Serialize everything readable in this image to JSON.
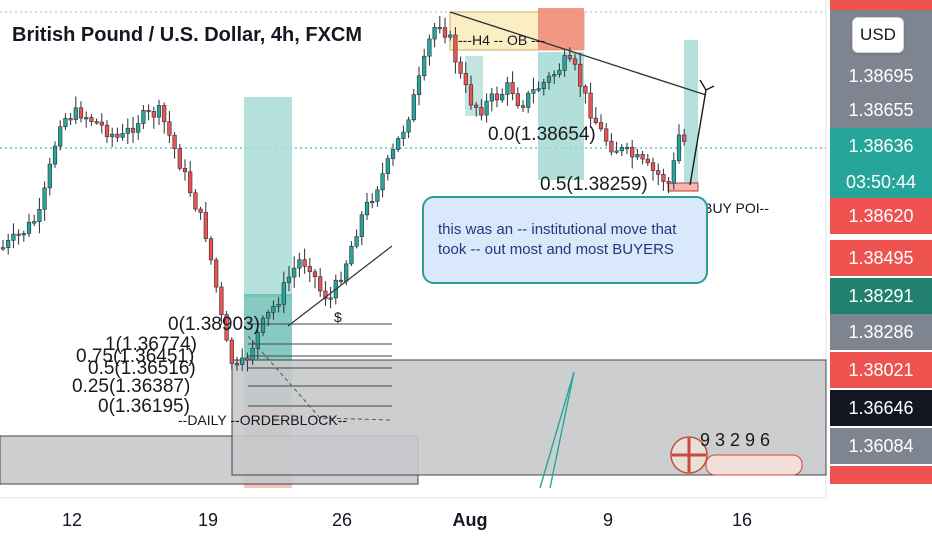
{
  "header": {
    "title": "British Pound / U.S. Dollar, 4h, FXCM",
    "currency_button": "USD"
  },
  "chart_data": {
    "type": "candlestick",
    "title": "British Pound / U.S. Dollar, 4h, FXCM",
    "y_axis": {
      "ticks": [
        "1.38695",
        "1.38655"
      ],
      "price_tags": [
        {
          "label": "1.38636",
          "color": "#26a69a"
        },
        {
          "label": "03:50:44",
          "color": "#26a69a"
        },
        {
          "label": "1.38620",
          "color": "#ef5350"
        },
        {
          "label": "1.38495",
          "color": "#ef5350"
        },
        {
          "label": "1.38291",
          "color": "#22806e"
        },
        {
          "label": "1.38286",
          "color": "#7f8590"
        },
        {
          "label": "1.38021",
          "color": "#ef5350"
        },
        {
          "label": "1.36646",
          "color": "#131722"
        },
        {
          "label": "1.36084",
          "color": "#7f8590"
        }
      ]
    },
    "x_axis": {
      "ticks": [
        "12",
        "19",
        "26",
        "Aug",
        "9",
        "16"
      ]
    },
    "annotations": {
      "h4_ob": "---H4 -- OB ---",
      "daily_ob": "--DAILY --ORDERBLOCK--",
      "h2_poi": "--H2 BUY POI--",
      "callout": "this was an -- institutional move that took -- out most and most BUYERS",
      "dollar_mark": "$",
      "fib_levels": [
        "0(1.38903)",
        "1(1.36774)",
        "0.75(1.36451)",
        "0.5(1.36516)",
        "0.25(1.36387)",
        "0(1.36195)"
      ],
      "fib_right_top": "0.0(1.38654)",
      "fib_right_bottom": "0.5(1.38259)",
      "calendar_numbers": "9 3 2 9 6"
    },
    "grid": true
  }
}
